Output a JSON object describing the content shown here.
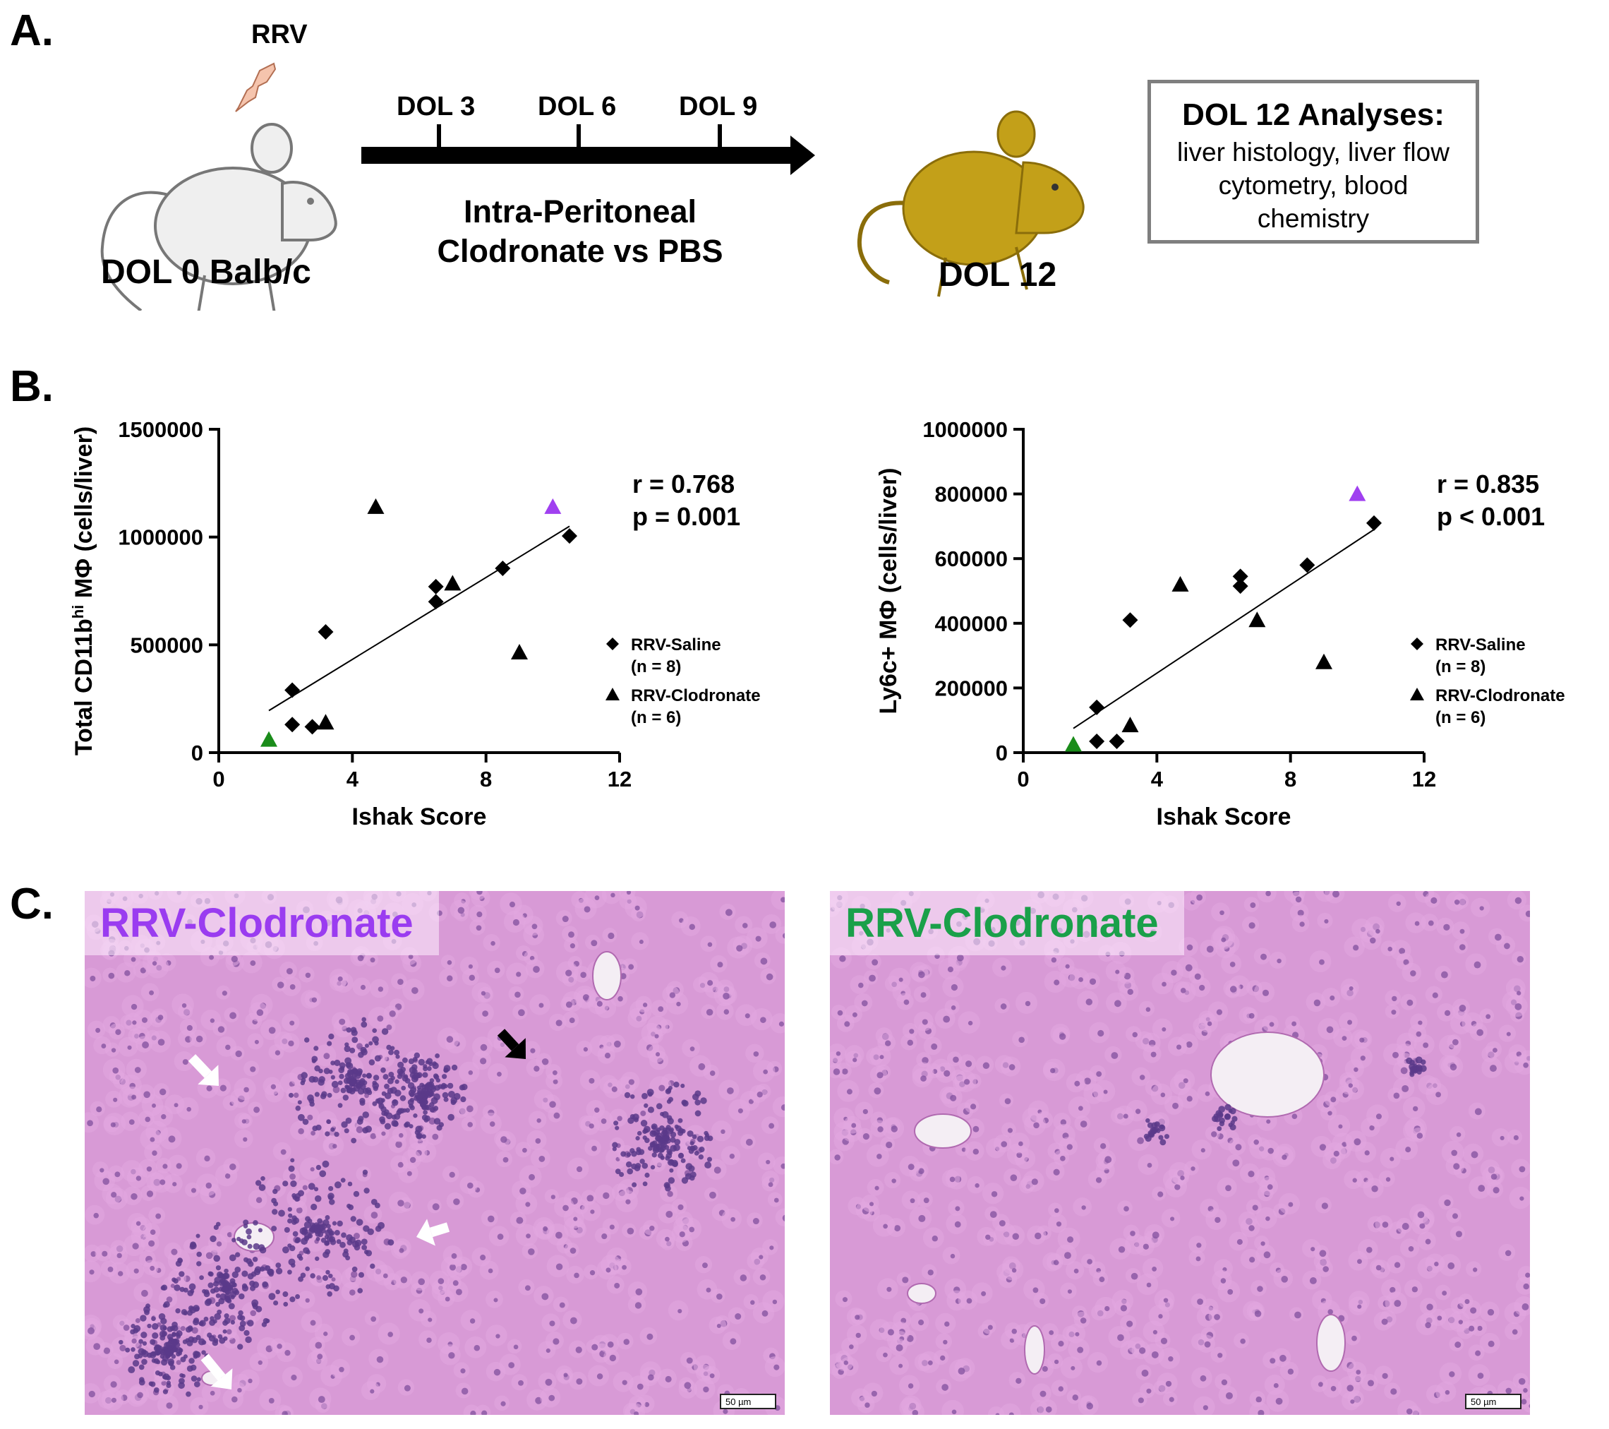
{
  "panelA": {
    "letter": "A.",
    "virus_label": "RRV",
    "mouse_left_label": "DOL 0 Balb/c",
    "timeline_ticks": [
      "DOL 3",
      "DOL 6",
      "DOL 9"
    ],
    "treatment_line1": "Intra-Peritoneal",
    "treatment_line2": "Clodronate vs PBS",
    "mouse_right_label": "DOL 12",
    "analysis_title": "DOL 12 Analyses:",
    "analysis_body": "liver histology, liver flow cytometry, blood chemistry",
    "colors": {
      "mouse_left": "#efefef",
      "mouse_right": "#c3a019",
      "bolt": "#f5c4ad"
    }
  },
  "panelB": {
    "letter": "B.",
    "legend": {
      "saline": "RRV-Saline",
      "saline_n": "(n = 8)",
      "clodronate": "RRV-Clodronate",
      "clodronate_n": "(n = 6)"
    }
  },
  "chart_data": [
    {
      "type": "scatter",
      "xlabel": "Ishak Score",
      "ylabel_main": "Total CD11b",
      "ylabel_sup": "hi",
      "ylabel_rest": " MΦ (cells/liver)",
      "xlim": [
        0,
        12
      ],
      "ylim": [
        0,
        1500000
      ],
      "xticks": [
        0,
        4,
        8,
        12
      ],
      "yticks": [
        0,
        500000,
        1000000,
        1500000
      ],
      "stat_r": "r = 0.768",
      "stat_p": "p = 0.001",
      "trend": {
        "x": [
          1.5,
          10.5
        ],
        "y": [
          195000,
          1050000
        ]
      },
      "series": [
        {
          "name": "RRV-Saline",
          "marker": "diamond",
          "points": [
            [
              2.2,
              290000
            ],
            [
              2.2,
              130000
            ],
            [
              2.8,
              120000
            ],
            [
              3.2,
              560000
            ],
            [
              6.5,
              770000
            ],
            [
              6.5,
              700000
            ],
            [
              8.5,
              855000
            ],
            [
              10.5,
              1005000
            ]
          ]
        },
        {
          "name": "RRV-Clodronate",
          "marker": "triangle",
          "points": [
            [
              1.5,
              60000,
              "#1a8c1a"
            ],
            [
              3.2,
              140000,
              "#000000"
            ],
            [
              4.7,
              1140000,
              "#000000"
            ],
            [
              7.0,
              785000,
              "#000000"
            ],
            [
              9.0,
              465000,
              "#000000"
            ],
            [
              10.0,
              1140000,
              "#a040f0"
            ]
          ]
        }
      ]
    },
    {
      "type": "scatter",
      "xlabel": "Ishak Score",
      "ylabel_main": "Ly6c+ MΦ (cells/liver)",
      "ylabel_sup": "",
      "ylabel_rest": "",
      "xlim": [
        0,
        12
      ],
      "ylim": [
        0,
        1000000
      ],
      "xticks": [
        0,
        4,
        8,
        12
      ],
      "yticks": [
        0,
        200000,
        400000,
        600000,
        800000,
        1000000
      ],
      "stat_r": "r = 0.835",
      "stat_p": "p < 0.001",
      "trend": {
        "x": [
          1.5,
          10.5
        ],
        "y": [
          75000,
          690000
        ]
      },
      "series": [
        {
          "name": "RRV-Saline",
          "marker": "diamond",
          "points": [
            [
              2.2,
              140000
            ],
            [
              2.2,
              35000
            ],
            [
              2.8,
              35000
            ],
            [
              3.2,
              410000
            ],
            [
              6.5,
              545000
            ],
            [
              6.5,
              515000
            ],
            [
              8.5,
              580000
            ],
            [
              10.5,
              710000
            ]
          ]
        },
        {
          "name": "RRV-Clodronate",
          "marker": "triangle",
          "points": [
            [
              1.5,
              25000,
              "#1a8c1a"
            ],
            [
              3.2,
              85000,
              "#000000"
            ],
            [
              4.7,
              520000,
              "#000000"
            ],
            [
              7.0,
              410000,
              "#000000"
            ],
            [
              9.0,
              280000,
              "#000000"
            ],
            [
              10.0,
              800000,
              "#a040f0"
            ]
          ]
        }
      ]
    }
  ],
  "panelC": {
    "letter": "C.",
    "left_label": "RRV-Clodronate",
    "left_label_color": "#9a3cf0",
    "right_label": "RRV-Clodronate",
    "right_label_color": "#1aa04a",
    "scalebar": "50 µm",
    "tissue_colors": {
      "base": "#d89ad6",
      "cell": "#e2a8e0",
      "nucleus": "#7a4a9a",
      "infiltrate": "#5a3a8a"
    }
  }
}
